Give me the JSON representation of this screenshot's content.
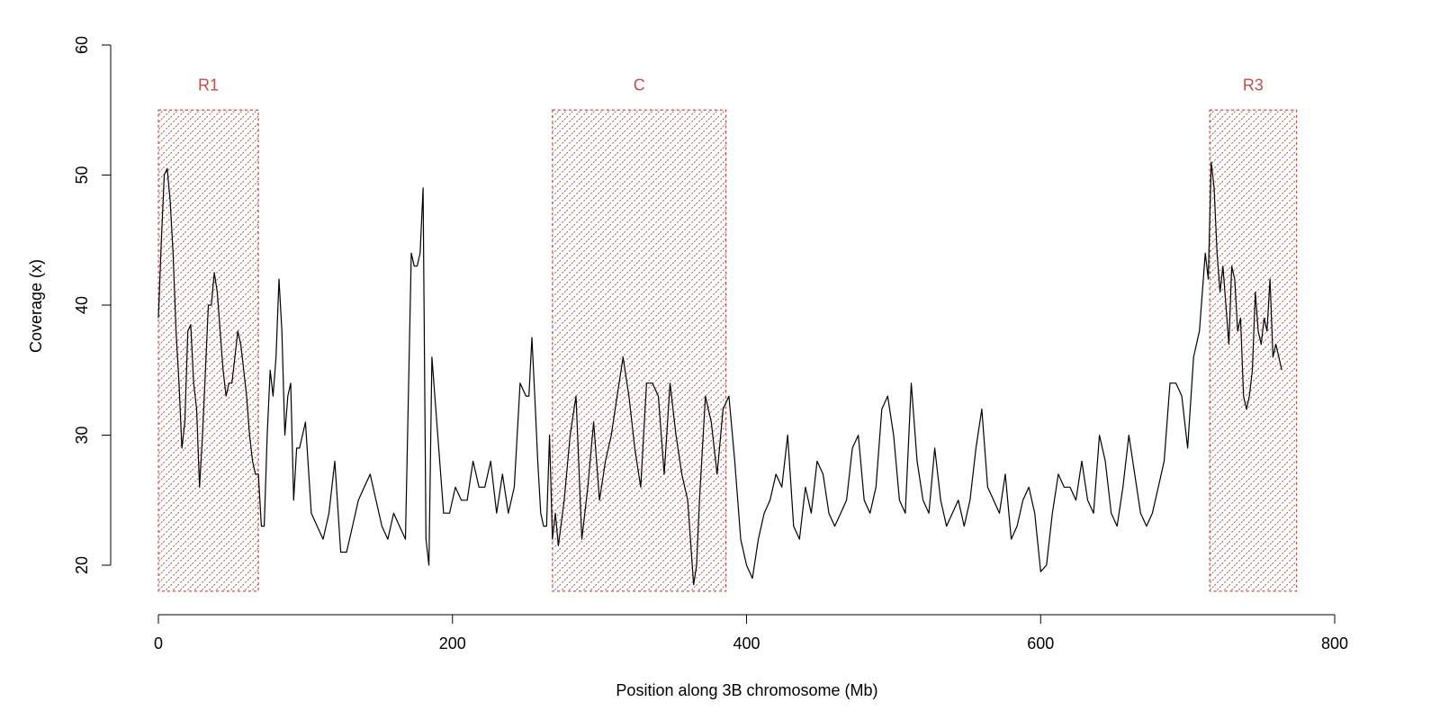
{
  "chart_data": {
    "type": "line",
    "title": "",
    "xlabel": "Position along 3B chromosome (Mb)",
    "ylabel": "Coverage (x)",
    "xlim": [
      0,
      800
    ],
    "ylim": [
      20,
      60
    ],
    "xticks": [
      0,
      200,
      400,
      600,
      800
    ],
    "yticks": [
      20,
      30,
      40,
      50,
      60
    ],
    "grid": false,
    "colors": {
      "line": "#000000",
      "region": "#c0504d"
    },
    "regions": [
      {
        "label": "R1",
        "x0": 0,
        "x1": 68,
        "y0": 18,
        "y1": 55
      },
      {
        "label": "C",
        "x0": 268,
        "x1": 386,
        "y0": 18,
        "y1": 55
      },
      {
        "label": "R3",
        "x0": 715,
        "x1": 774,
        "y0": 18,
        "y1": 55
      }
    ],
    "series": [
      {
        "x": [
          0,
          2,
          4,
          6,
          8,
          10,
          12,
          14,
          16,
          18,
          20,
          22,
          24,
          26,
          28,
          30,
          32,
          34,
          36,
          38,
          40,
          42,
          44,
          46,
          48,
          50,
          52,
          54,
          56,
          58,
          60,
          62,
          64,
          66,
          68,
          70,
          72,
          74,
          76,
          78,
          80,
          82,
          84,
          86,
          88,
          90,
          92,
          94,
          96,
          98,
          100,
          104,
          108,
          112,
          116,
          120,
          124,
          128,
          132,
          136,
          140,
          144,
          148,
          152,
          156,
          160,
          164,
          168,
          172,
          174,
          176,
          178,
          180,
          182,
          184,
          186,
          190,
          194,
          198,
          202,
          206,
          210,
          214,
          218,
          222,
          226,
          230,
          234,
          238,
          242,
          246,
          250,
          252,
          254,
          256,
          258,
          260,
          262,
          264,
          266,
          268,
          270,
          272,
          276,
          280,
          284,
          288,
          292,
          296,
          300,
          304,
          308,
          312,
          316,
          320,
          324,
          328,
          332,
          336,
          340,
          344,
          348,
          352,
          356,
          360,
          364,
          366,
          368,
          372,
          376,
          380,
          384,
          388,
          392,
          396,
          400,
          404,
          408,
          412,
          416,
          420,
          424,
          428,
          432,
          436,
          440,
          444,
          448,
          452,
          456,
          460,
          464,
          468,
          472,
          476,
          480,
          484,
          488,
          492,
          496,
          500,
          504,
          508,
          512,
          516,
          520,
          524,
          528,
          532,
          536,
          540,
          544,
          548,
          552,
          556,
          560,
          564,
          568,
          572,
          576,
          580,
          584,
          588,
          592,
          596,
          600,
          604,
          608,
          612,
          616,
          620,
          624,
          628,
          632,
          636,
          640,
          644,
          648,
          652,
          656,
          660,
          664,
          668,
          672,
          676,
          680,
          684,
          688,
          692,
          696,
          700,
          704,
          708,
          712,
          714,
          716,
          718,
          720,
          722,
          724,
          726,
          728,
          730,
          732,
          734,
          736,
          738,
          740,
          742,
          744,
          746,
          748,
          750,
          752,
          754,
          756,
          758,
          760,
          762,
          764
        ],
        "values": [
          39,
          45,
          50,
          50.5,
          48,
          44,
          38,
          34,
          29,
          31,
          38,
          38.5,
          34,
          32,
          26,
          30,
          35,
          40,
          40,
          42.5,
          41,
          38,
          35,
          33,
          34,
          34,
          36,
          38,
          37,
          35,
          33,
          30,
          28,
          27,
          27,
          23,
          23,
          30,
          35,
          33,
          36,
          42,
          38,
          30,
          33,
          34,
          25,
          29,
          29,
          30,
          31,
          24,
          23,
          22,
          24,
          28,
          21,
          21,
          23,
          25,
          26,
          27,
          25,
          23,
          22,
          24,
          23,
          22,
          44,
          43,
          43,
          44,
          49,
          22,
          20,
          36,
          30,
          24,
          24,
          26,
          25,
          25,
          28,
          26,
          26,
          28,
          24,
          27,
          24,
          26,
          34,
          33,
          33,
          37.5,
          33,
          28,
          24,
          23,
          23,
          30,
          22,
          24,
          21.5,
          25,
          30,
          33,
          22,
          26,
          31,
          25,
          28,
          30,
          33,
          36,
          33,
          29,
          26,
          34,
          34,
          33,
          27,
          34,
          30,
          27,
          25,
          18.5,
          20,
          25,
          33,
          31,
          27,
          32,
          33,
          28,
          22,
          20,
          19,
          22,
          24,
          25,
          27,
          26,
          30,
          23,
          22,
          26,
          24,
          28,
          27,
          24,
          23,
          24,
          25,
          29,
          30,
          25,
          24,
          26,
          32,
          33,
          30,
          25,
          24,
          34,
          28,
          25,
          24,
          29,
          25,
          23,
          24,
          25,
          23,
          25,
          29,
          32,
          26,
          25,
          24,
          27,
          22,
          23,
          25,
          26,
          24,
          19.5,
          20,
          24,
          27,
          26,
          26,
          25,
          28,
          25,
          24,
          30,
          28,
          24,
          23,
          26,
          30,
          27,
          24,
          23,
          24,
          26,
          28,
          34,
          34,
          33,
          29,
          36,
          38,
          44,
          42,
          51,
          49,
          44,
          41,
          43,
          40,
          37,
          43,
          42,
          38,
          39,
          33,
          32,
          33,
          35,
          41,
          38,
          37,
          39,
          38,
          42,
          36,
          37,
          36,
          35
        ]
      }
    ]
  }
}
